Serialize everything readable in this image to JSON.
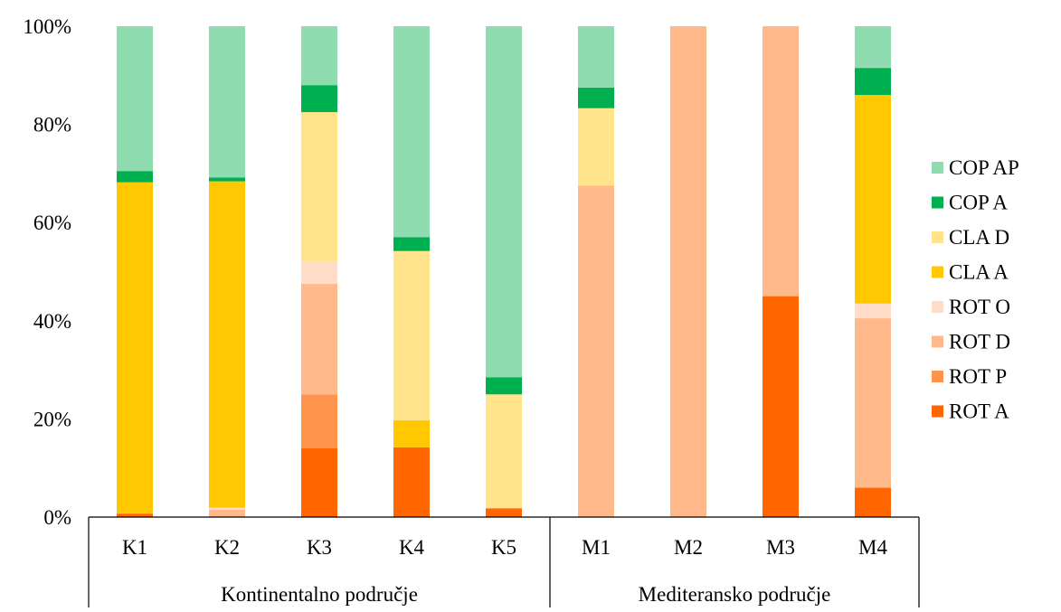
{
  "chart_data": {
    "type": "bar",
    "stacked": true,
    "normalized": true,
    "categories": [
      "K1",
      "K2",
      "K3",
      "K4",
      "K5",
      "M1",
      "M2",
      "M3",
      "M4"
    ],
    "groups": [
      {
        "label": "Kontinentalno područje",
        "categories": [
          "K1",
          "K2",
          "K3",
          "K4",
          "K5"
        ]
      },
      {
        "label": "Mediteransko područje",
        "categories": [
          "M1",
          "M2",
          "M3",
          "M4"
        ]
      }
    ],
    "y_ticks": [
      "0%",
      "20%",
      "40%",
      "60%",
      "80%",
      "100%"
    ],
    "ylim": [
      0,
      100
    ],
    "legend_position": "right",
    "series": [
      {
        "name": "ROT A",
        "color": "#ff6600",
        "values": [
          0.7,
          0,
          14,
          14.2,
          1.8,
          0,
          0,
          45,
          6
        ]
      },
      {
        "name": "ROT P",
        "color": "#ff944d",
        "values": [
          0,
          0,
          11,
          0,
          0,
          0,
          0,
          0,
          0
        ]
      },
      {
        "name": "ROT D",
        "color": "#ffb98a",
        "values": [
          0,
          1.5,
          22.5,
          0,
          0,
          67.5,
          100,
          55,
          34.5
        ]
      },
      {
        "name": "ROT O",
        "color": "#ffddc8",
        "values": [
          0,
          0.4,
          4.5,
          0,
          0,
          0,
          0,
          0,
          3
        ]
      },
      {
        "name": "CLA A",
        "color": "#ffc800",
        "values": [
          67.5,
          66.5,
          0,
          5.5,
          0,
          0,
          0,
          0,
          42.5
        ]
      },
      {
        "name": "CLA D",
        "color": "#ffe48c",
        "values": [
          0,
          0,
          30.5,
          34.5,
          23.2,
          15.8,
          0,
          0,
          0
        ]
      },
      {
        "name": "COP A",
        "color": "#00b050",
        "values": [
          2.3,
          0.8,
          5.5,
          2.8,
          3.5,
          4.2,
          0,
          0,
          5.5
        ]
      },
      {
        "name": "COP AP",
        "color": "#8fdcb0",
        "values": [
          29.5,
          30.8,
          12,
          43,
          71.5,
          12.5,
          0,
          0,
          8.5
        ]
      }
    ]
  }
}
